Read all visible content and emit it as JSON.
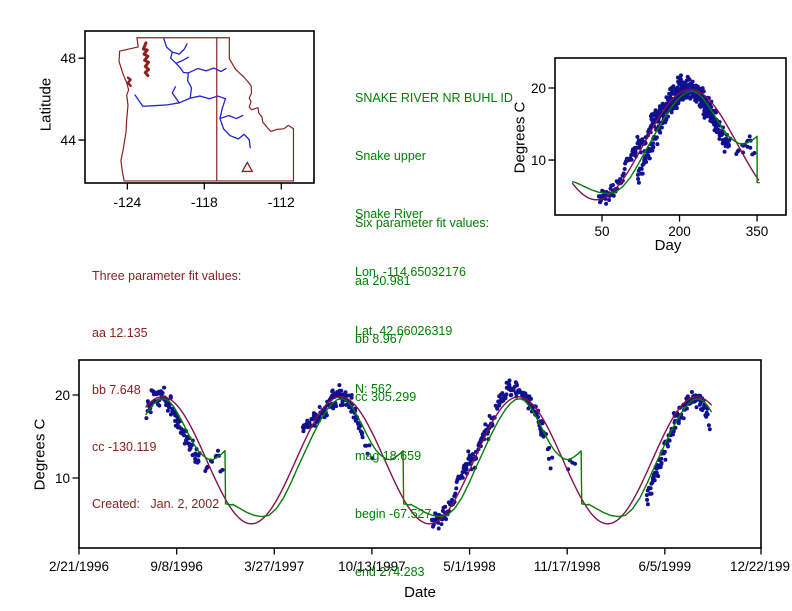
{
  "colors": {
    "points": "#101090",
    "green_curve": "#067d06",
    "maroon_curve": "#87104e",
    "map_border": "#8b2020",
    "river": "#2222cc",
    "green_text": "#008000",
    "red_text": "#8b2020",
    "axis": "#000000"
  },
  "texts": {
    "site": {
      "lines": [
        "SNAKE RIVER NR BUHL ID",
        "Snake upper",
        "Snake River",
        "Lon. -114.65032176",
        "Lat. 42.66026319",
        "N: 562"
      ]
    },
    "fit6": {
      "lines": [
        "Six parameter fit values:",
        "aa 20.981",
        "bb 8.967",
        "cc 305.299",
        "mag 18.659",
        "begin -67.527",
        "end 274.283"
      ]
    },
    "fit3": {
      "lines": [
        "Three parameter fit values:",
        "aa 12.135",
        "bb 7.648",
        "cc -130.119",
        "Created:   Jan. 2, 2002"
      ]
    },
    "map_ylabel": "Latitude",
    "seasonal_ylabel": "Degrees C",
    "seasonal_xlabel": "Day",
    "ts_ylabel": "Degrees C",
    "ts_xlabel": "Date"
  },
  "chart_data": [
    {
      "id": "site-map",
      "type": "map",
      "ylabel": "Latitude",
      "xticks": [
        {
          "v": -124,
          "label": "-124"
        },
        {
          "v": -118,
          "label": "-118"
        },
        {
          "v": -112,
          "label": "-112"
        }
      ],
      "yticks": [
        {
          "v": 48,
          "label": "48"
        },
        {
          "v": 44,
          "label": "44"
        }
      ],
      "lonlim": [
        -127.3,
        -109.45
      ],
      "latlim": [
        41.9,
        49.33
      ],
      "site_marker": {
        "lon": -114.65032176,
        "lat": 42.66026319,
        "shape": "triangle-open"
      },
      "borders": [
        {
          "w": 1.2,
          "pts": [
            [
              -123.25,
              49.0
            ],
            [
              -116.05,
              49.0
            ]
          ]
        },
        {
          "w": 1.2,
          "pts": [
            [
              -123.25,
              49.0
            ],
            [
              -123.15,
              48.55
            ],
            [
              -124.6,
              48.35
            ],
            [
              -124.65,
              47.85
            ],
            [
              -124.35,
              47.25
            ],
            [
              -124.05,
              46.8
            ],
            [
              -123.9,
              46.45
            ],
            [
              -124.05,
              46.2
            ],
            [
              -123.95,
              45.7
            ],
            [
              -124.05,
              45.0
            ],
            [
              -124.1,
              44.4
            ],
            [
              -124.35,
              43.45
            ],
            [
              -124.5,
              43.0
            ],
            [
              -124.4,
              42.5
            ],
            [
              -124.25,
              42.0
            ]
          ]
        },
        {
          "w": 1.2,
          "pts": [
            [
              -124.25,
              42.0
            ],
            [
              -111.05,
              42.0
            ]
          ]
        },
        {
          "w": 1.2,
          "pts": [
            [
              -111.05,
              42.0
            ],
            [
              -111.05,
              44.55
            ]
          ]
        },
        {
          "w": 1.2,
          "pts": [
            [
              -111.05,
              44.55
            ],
            [
              -111.45,
              44.72
            ],
            [
              -111.8,
              44.55
            ],
            [
              -112.35,
              44.52
            ],
            [
              -112.8,
              44.42
            ],
            [
              -113.05,
              44.58
            ],
            [
              -113.45,
              44.88
            ],
            [
              -113.5,
              45.12
            ],
            [
              -113.75,
              45.32
            ],
            [
              -113.82,
              45.58
            ],
            [
              -114.32,
              45.48
            ],
            [
              -114.5,
              45.62
            ],
            [
              -114.36,
              45.88
            ],
            [
              -114.5,
              46.05
            ],
            [
              -114.32,
              46.3
            ],
            [
              -114.35,
              46.65
            ],
            [
              -114.6,
              46.85
            ],
            [
              -114.95,
              47.1
            ],
            [
              -115.3,
              47.3
            ],
            [
              -115.55,
              47.45
            ],
            [
              -115.72,
              47.62
            ],
            [
              -116.05,
              47.98
            ],
            [
              -116.05,
              49.0
            ]
          ]
        },
        {
          "w": 1.2,
          "pts": [
            [
              -117.03,
              49.0
            ],
            [
              -117.03,
              42.0
            ]
          ]
        },
        {
          "w": 3.0,
          "pts": [
            [
              -122.55,
              48.75
            ],
            [
              -122.75,
              48.45
            ],
            [
              -122.45,
              48.4
            ],
            [
              -122.7,
              48.2
            ],
            [
              -122.4,
              48.1
            ],
            [
              -122.65,
              47.9
            ],
            [
              -122.35,
              47.8
            ],
            [
              -122.6,
              47.6
            ],
            [
              -122.35,
              47.45
            ],
            [
              -122.6,
              47.3
            ],
            [
              -122.4,
              47.15
            ]
          ]
        },
        {
          "w": 2.4,
          "pts": [
            [
              -123.95,
              47.05
            ],
            [
              -123.75,
              46.95
            ],
            [
              -123.95,
              46.8
            ],
            [
              -123.75,
              46.65
            ]
          ]
        }
      ],
      "rivers": [
        {
          "pts": [
            [
              -121.15,
              48.95
            ],
            [
              -120.95,
              48.55
            ],
            [
              -120.5,
              48.3
            ],
            [
              -120.62,
              48.0
            ],
            [
              -120.2,
              47.75
            ],
            [
              -119.9,
              47.55
            ],
            [
              -119.62,
              47.3
            ],
            [
              -119.25,
              47.28
            ],
            [
              -119.3,
              46.9
            ],
            [
              -119.0,
              46.55
            ],
            [
              -119.1,
              46.05
            ]
          ]
        },
        {
          "pts": [
            [
              -120.5,
              48.3
            ],
            [
              -119.95,
              48.2
            ],
            [
              -119.55,
              48.45
            ],
            [
              -119.35,
              48.7
            ]
          ]
        },
        {
          "pts": [
            [
              -120.2,
              47.75
            ],
            [
              -119.65,
              47.9
            ],
            [
              -119.25,
              48.05
            ]
          ]
        },
        {
          "pts": [
            [
              -119.25,
              47.28
            ],
            [
              -118.5,
              47.5
            ],
            [
              -117.85,
              47.38
            ],
            [
              -117.25,
              47.52
            ],
            [
              -116.7,
              47.35
            ],
            [
              -116.3,
              47.5
            ]
          ]
        },
        {
          "pts": [
            [
              -123.4,
              46.2
            ],
            [
              -122.8,
              45.65
            ],
            [
              -121.9,
              45.68
            ],
            [
              -120.9,
              45.72
            ],
            [
              -119.95,
              45.82
            ],
            [
              -119.1,
              46.05
            ],
            [
              -118.35,
              46.15
            ],
            [
              -117.6,
              46.02
            ],
            [
              -116.95,
              46.15
            ],
            [
              -116.35,
              46.02
            ]
          ]
        },
        {
          "pts": [
            [
              -119.95,
              45.82
            ],
            [
              -120.5,
              46.3
            ],
            [
              -120.25,
              46.6
            ]
          ]
        },
        {
          "pts": [
            [
              -116.35,
              46.02
            ],
            [
              -116.6,
              45.55
            ],
            [
              -116.78,
              45.05
            ],
            [
              -116.5,
              44.55
            ],
            [
              -116.0,
              44.22
            ],
            [
              -115.35,
              44.05
            ],
            [
              -114.9,
              44.28
            ],
            [
              -114.5,
              44.02
            ],
            [
              -114.42,
              43.62
            ]
          ]
        },
        {
          "pts": [
            [
              -116.78,
              45.05
            ],
            [
              -116.1,
              45.2
            ],
            [
              -115.5,
              45.05
            ],
            [
              -115.0,
              45.2
            ]
          ]
        }
      ]
    },
    {
      "id": "seasonal-fit-plot",
      "type": "scatter",
      "xlabel": "Day",
      "ylabel": "Degrees C",
      "xlim": [
        -41,
        406
      ],
      "ylim": [
        2.37,
        24.17
      ],
      "xticks": [
        {
          "v": 50,
          "label": "50"
        },
        {
          "v": 200,
          "label": "200"
        },
        {
          "v": 350,
          "label": "350"
        }
      ],
      "yticks": [
        {
          "v": 10,
          "label": "10"
        },
        {
          "v": 20,
          "label": "20"
        }
      ],
      "curve_day_range": [
        -7,
        353
      ],
      "series": [
        {
          "name": "observed",
          "style": "points"
        },
        {
          "name": "six_parameter_fit",
          "style": "line",
          "color_key": "green_curve"
        },
        {
          "name": "three_parameter_fit",
          "style": "line",
          "color_key": "maroon_curve"
        }
      ]
    },
    {
      "id": "timeseries-plot",
      "type": "scatter",
      "xlabel": "Date",
      "ylabel": "Degrees C",
      "origin_date": "2/21/1996",
      "xlim_days": [
        0,
        1397
      ],
      "ylim": [
        1.57,
        24.22
      ],
      "xticks": [
        {
          "t": 0,
          "label": "2/21/1996"
        },
        {
          "t": 200,
          "label": "9/8/1996"
        },
        {
          "t": 400,
          "label": "3/27/1997"
        },
        {
          "t": 600,
          "label": "10/13/1997"
        },
        {
          "t": 800,
          "label": "5/1/1998"
        },
        {
          "t": 1000,
          "label": "11/17/1998"
        },
        {
          "t": 1200,
          "label": "6/5/1999"
        },
        {
          "t": 1400,
          "label": "12/22/199"
        }
      ],
      "yticks": [
        {
          "v": 10,
          "label": "10"
        },
        {
          "v": 20,
          "label": "20"
        }
      ],
      "curve_t_range": [
        137,
        1296
      ]
    }
  ],
  "model": {
    "three_param": {
      "aa": 12.135,
      "bb": 7.648,
      "cc": -130.119,
      "period": 365
    },
    "six_param": {
      "aa": 20.981,
      "bb": 8.967,
      "cc": 305.299,
      "mag": 18.659,
      "begin": -67.527,
      "end": 274.283
    },
    "n_obs": 562,
    "green_curve_points": [
      [
        -12,
        7.1
      ],
      [
        0,
        6.85
      ],
      [
        15,
        6.35
      ],
      [
        30,
        5.85
      ],
      [
        45,
        5.5
      ],
      [
        60,
        5.35
      ],
      [
        75,
        5.5
      ],
      [
        90,
        6.3
      ],
      [
        105,
        7.6
      ],
      [
        120,
        9.4
      ],
      [
        135,
        11.4
      ],
      [
        150,
        13.3
      ],
      [
        165,
        15.2
      ],
      [
        180,
        16.9
      ],
      [
        195,
        18.3
      ],
      [
        205,
        19.0
      ],
      [
        215,
        19.45
      ],
      [
        225,
        19.55
      ],
      [
        235,
        19.3
      ],
      [
        245,
        18.6
      ],
      [
        255,
        17.6
      ],
      [
        265,
        16.5
      ],
      [
        275,
        15.3
      ],
      [
        285,
        14.2
      ],
      [
        295,
        13.3
      ],
      [
        305,
        12.7
      ],
      [
        315,
        12.3
      ],
      [
        325,
        12.2
      ],
      [
        335,
        12.55
      ],
      [
        343,
        12.9
      ],
      [
        350,
        13.3
      ]
    ],
    "wrap_day": 350,
    "wrap_low": 6.9,
    "doy_offset": 51
  },
  "scatter_gen": {
    "seed": 13,
    "segments": [
      {
        "t0": 139,
        "t1": 246,
        "step": 2.0,
        "jit": 0.55,
        "streak": 0.5,
        "bias": [
          [
            139,
            0.6
          ],
          [
            160,
            0.5
          ],
          [
            175,
            0.0
          ],
          [
            190,
            -0.8
          ],
          [
            205,
            -1.0
          ],
          [
            220,
            -1.2
          ],
          [
            232,
            -0.9
          ],
          [
            246,
            -0.6
          ]
        ]
      },
      {
        "t0": 250,
        "t1": 295,
        "step": 6,
        "jit": 0.65,
        "streak": 0.4,
        "bias": [
          [
            250,
            -0.7
          ],
          [
            262,
            -1.1
          ],
          [
            272,
            0.2
          ],
          [
            282,
            0.9
          ],
          [
            290,
            -1.0
          ],
          [
            295,
            -1.6
          ]
        ]
      },
      {
        "t0": 459,
        "t1": 583,
        "step": 1.8,
        "jit": 0.5,
        "streak": 0.5,
        "bias": [
          [
            459,
            3.4
          ],
          [
            468,
            2.6
          ],
          [
            478,
            1.8
          ],
          [
            490,
            1.0
          ],
          [
            502,
            0.5
          ],
          [
            515,
            0.4
          ],
          [
            530,
            0.4
          ],
          [
            545,
            0.3
          ],
          [
            558,
            0.0
          ],
          [
            570,
            -0.5
          ],
          [
            583,
            -1.0
          ]
        ]
      },
      {
        "t0": 587,
        "t1": 600,
        "step": 6,
        "jit": 0.5,
        "streak": 0.3,
        "bias": [
          [
            587,
            -1.4
          ],
          [
            600,
            -1.8
          ]
        ]
      },
      {
        "t0": 722,
        "t1": 957,
        "step": 2.0,
        "jit": 0.55,
        "streak": 0.5,
        "bias": [
          [
            722,
            -0.5
          ],
          [
            736,
            -0.2
          ],
          [
            752,
            0.3
          ],
          [
            768,
            1.6
          ],
          [
            780,
            2.8
          ],
          [
            792,
            3.2
          ],
          [
            802,
            2.4
          ],
          [
            814,
            1.2
          ],
          [
            826,
            1.9
          ],
          [
            840,
            1.4
          ],
          [
            854,
            1.7
          ],
          [
            866,
            2.3
          ],
          [
            878,
            2.1
          ],
          [
            890,
            1.4
          ],
          [
            902,
            0.8
          ],
          [
            916,
            0.5
          ],
          [
            930,
            0.5
          ],
          [
            944,
            0.2
          ],
          [
            957,
            -0.6
          ]
        ]
      },
      {
        "t0": 960,
        "t1": 970,
        "step": 5,
        "jit": 0.6,
        "streak": 0.3,
        "bias": [
          [
            960,
            -1.0
          ],
          [
            970,
            -1.5
          ]
        ]
      },
      {
        "t0": 1004,
        "t1": 1018,
        "step": 6,
        "jit": 0.4,
        "streak": 0.2,
        "bias": [
          [
            1004,
            -0.4
          ],
          [
            1018,
            -0.6
          ]
        ]
      },
      {
        "t0": 1164,
        "t1": 1292,
        "step": 2.0,
        "jit": 0.55,
        "streak": 0.5,
        "bias": [
          [
            1164,
            -1.7
          ],
          [
            1178,
            -1.1
          ],
          [
            1192,
            -0.9
          ],
          [
            1205,
            -0.5
          ],
          [
            1218,
            0.1
          ],
          [
            1232,
            0.2
          ],
          [
            1246,
            0.5
          ],
          [
            1258,
            0.4
          ],
          [
            1270,
            0.0
          ],
          [
            1280,
            -0.5
          ],
          [
            1288,
            -1.3
          ],
          [
            1292,
            -2.3
          ]
        ]
      }
    ]
  }
}
